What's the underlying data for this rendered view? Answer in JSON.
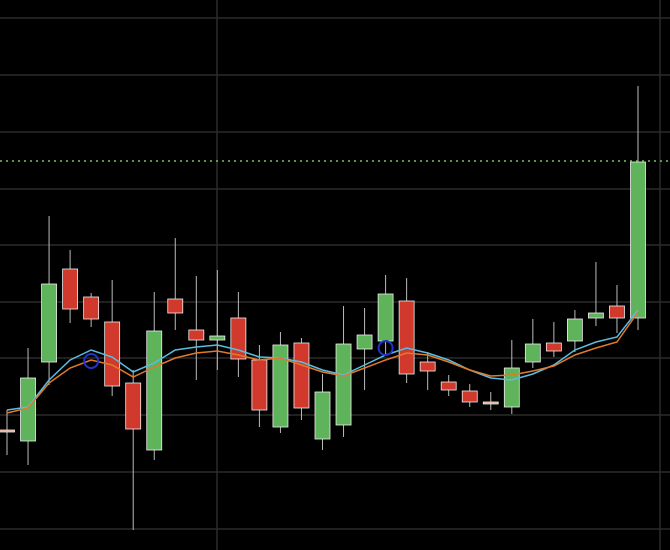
{
  "chart_data": {
    "type": "candlestick",
    "categories": [
      null,
      null,
      null,
      null,
      null,
      null,
      null,
      null,
      null,
      null,
      null,
      null,
      null,
      null,
      null,
      null,
      null,
      null,
      null,
      null,
      null,
      null,
      null,
      null,
      null,
      null,
      null,
      null,
      null,
      null,
      null
    ],
    "open": [
      120,
      109,
      188,
      281,
      253,
      228,
      167,
      100,
      251,
      220,
      210,
      232,
      190,
      123,
      207,
      111,
      125,
      201,
      209,
      249,
      188,
      168,
      159,
      148,
      143,
      188,
      207,
      209,
      232,
      244,
      232
    ],
    "high": [
      140,
      202,
      334,
      300,
      257,
      270,
      180,
      258,
      312,
      274,
      280,
      258,
      205,
      218,
      212,
      176,
      244,
      242,
      275,
      272,
      198,
      175,
      166,
      158,
      210,
      231,
      228,
      240,
      288,
      265,
      464
    ],
    "low": [
      95,
      85,
      165,
      227,
      223,
      154,
      20,
      90,
      220,
      170,
      180,
      173,
      123,
      117,
      130,
      100,
      113,
      160,
      195,
      167,
      160,
      154,
      143,
      140,
      136,
      182,
      193,
      198,
      224,
      217,
      220
    ],
    "close": [
      120,
      172,
      266,
      241,
      231,
      164,
      121,
      219,
      237,
      210,
      214,
      191,
      140,
      205,
      142,
      158,
      206,
      215,
      256,
      176,
      179,
      160,
      148,
      148,
      182,
      206,
      199,
      231,
      237,
      232,
      388
    ],
    "up_color": "#5fb35a",
    "down_color": "#d0392b",
    "flat_color": "#e8a27a",
    "lines": [
      {
        "color": "#5bbde0",
        "values": [
          140,
          143,
          170,
          190,
          200,
          193,
          178,
          187,
          200,
          203,
          205,
          200,
          193,
          192,
          188,
          180,
          175,
          185,
          195,
          202,
          197,
          190,
          180,
          172,
          170,
          176,
          185,
          200,
          208,
          213,
          240
        ]
      },
      {
        "color": "#e07a2a",
        "values": [
          137,
          142,
          167,
          182,
          190,
          185,
          173,
          183,
          192,
          197,
          199,
          195,
          190,
          192,
          185,
          178,
          174,
          182,
          190,
          197,
          195,
          188,
          180,
          174,
          175,
          179,
          184,
          195,
          202,
          208,
          238
        ]
      }
    ],
    "markers": {
      "indices": [
        4,
        18
      ],
      "values": [
        189,
        202
      ],
      "color": "#2233cc"
    },
    "price_line": {
      "value": 389,
      "color": "#7fbf5f"
    },
    "ylim": [
      0,
      550
    ],
    "yticks": [
      21,
      78,
      135,
      192,
      248,
      305,
      361,
      418,
      475,
      532
    ],
    "grid": true
  }
}
